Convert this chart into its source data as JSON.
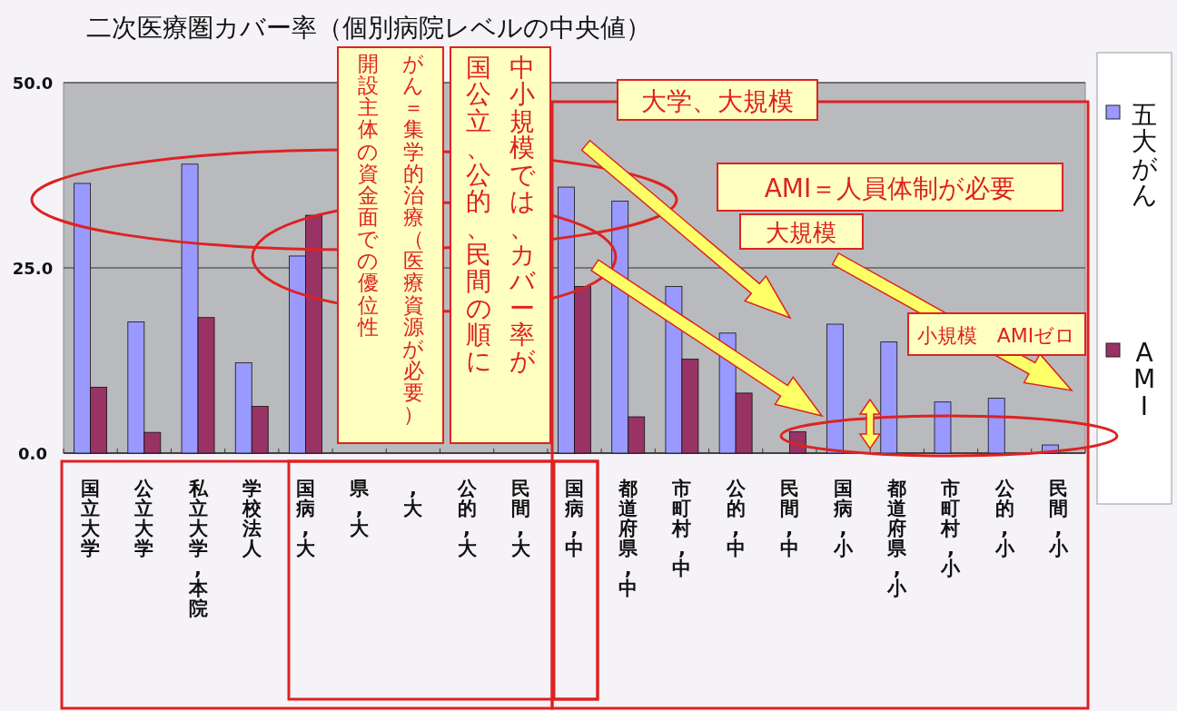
{
  "chart_data": {
    "type": "bar",
    "title": "二次医療圏カバー率（個別病院レベルの中央値）",
    "categories": [
      "国立大学",
      "公立大学",
      "私立大学,本院",
      "学校法人",
      "国病,大",
      "県,大",
      ",大",
      "公的,大",
      "民間,大",
      "国病,中",
      "都道府県,中",
      "市町村,中",
      "公的,中",
      "民間,中",
      "国病,小",
      "都道府県,小",
      "市町村,小",
      "公的,小",
      "民間,小"
    ],
    "series": [
      {
        "name": "五大がん",
        "color": "#9999ff",
        "values": [
          36.4,
          17.7,
          39.0,
          12.2,
          26.6,
          null,
          null,
          null,
          null,
          35.9,
          34.0,
          22.5,
          16.2,
          null,
          17.4,
          15.0,
          6.9,
          7.4,
          1.1
        ]
      },
      {
        "name": "AMI",
        "color": "#993366",
        "values": [
          8.9,
          2.8,
          18.3,
          6.3,
          32.1,
          null,
          null,
          null,
          null,
          22.5,
          4.9,
          12.7,
          8.1,
          2.9,
          0,
          0,
          0,
          0,
          0
        ]
      }
    ],
    "ylim": [
      0,
      50
    ],
    "yticks": [
      {
        "value": 0,
        "label": "0.0"
      },
      {
        "value": 25,
        "label": "25.0"
      },
      {
        "value": 50,
        "label": "50.0"
      }
    ],
    "grid": "y",
    "legend": "right",
    "annotations": [
      "がん＝集学的治療（医療資源が必要）",
      "開設主体の資金面での優位性",
      "中小規模では、カバー率が",
      "国公立、公的、民間の順に",
      "大学、大規模",
      "AMI＝人員体制が必要",
      "大規模",
      "小規模　AMIゼロ"
    ]
  }
}
